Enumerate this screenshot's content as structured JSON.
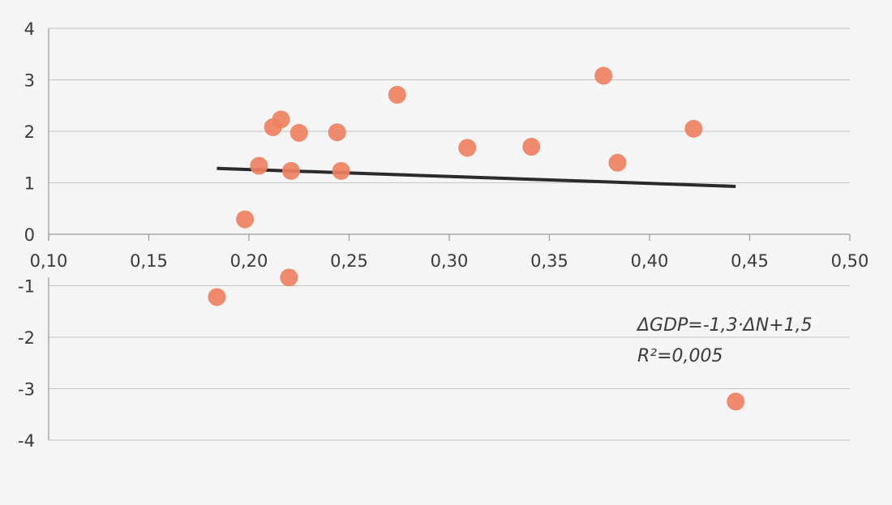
{
  "chart_data": {
    "type": "scatter",
    "title": "",
    "xlabel": "",
    "ylabel": "",
    "xlim": [
      0.1,
      0.5
    ],
    "ylim": [
      -4,
      4
    ],
    "x_ticks": [
      0.1,
      0.15,
      0.2,
      0.25,
      0.3,
      0.35,
      0.4,
      0.45,
      0.5
    ],
    "x_tick_labels": [
      "0,10",
      "0,15",
      "0,20",
      "0,25",
      "0,30",
      "0,35",
      "0,40",
      "0,45",
      "0,50"
    ],
    "y_ticks": [
      -4,
      -3,
      -2,
      -1,
      0,
      1,
      2,
      3,
      4
    ],
    "y_tick_labels": [
      "-4",
      "-3",
      "-2",
      "-1",
      "0",
      "1",
      "2",
      "3",
      "4"
    ],
    "grid": "horizontal",
    "legend": "none",
    "point_color": "#ef8060",
    "trend_color": "#2b2b2b",
    "points": [
      {
        "x": 0.184,
        "y": -1.22
      },
      {
        "x": 0.198,
        "y": 0.29
      },
      {
        "x": 0.205,
        "y": 1.33
      },
      {
        "x": 0.212,
        "y": 2.08
      },
      {
        "x": 0.216,
        "y": 2.23
      },
      {
        "x": 0.22,
        "y": -0.84
      },
      {
        "x": 0.221,
        "y": 1.23
      },
      {
        "x": 0.225,
        "y": 1.97
      },
      {
        "x": 0.244,
        "y": 1.98
      },
      {
        "x": 0.246,
        "y": 1.23
      },
      {
        "x": 0.274,
        "y": 2.71
      },
      {
        "x": 0.309,
        "y": 1.68
      },
      {
        "x": 0.341,
        "y": 1.7
      },
      {
        "x": 0.377,
        "y": 3.08
      },
      {
        "x": 0.384,
        "y": 1.39
      },
      {
        "x": 0.422,
        "y": 2.05
      },
      {
        "x": 0.443,
        "y": -3.25
      }
    ],
    "trendline": {
      "x": [
        0.184,
        0.443
      ],
      "y": [
        1.28,
        0.93
      ]
    },
    "annotations": [
      "ΔGDP=-1,3·ΔN+1,5",
      "R²=0,005"
    ]
  }
}
